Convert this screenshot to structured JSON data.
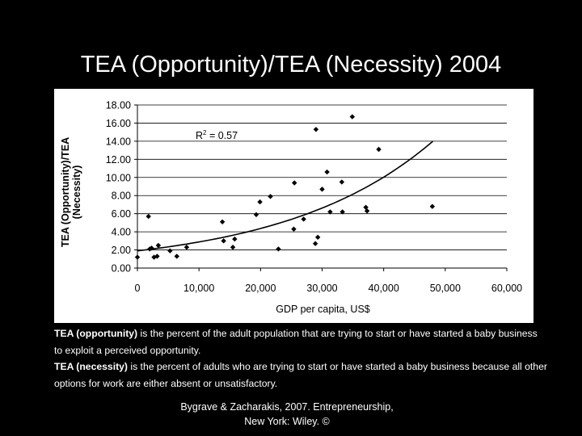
{
  "slide": {
    "title": "TEA (Opportunity)/TEA (Necessity) 2004"
  },
  "notes": [
    {
      "term": "TEA (opportunity)",
      "text": " is the percent of the adult population that are trying to start or have started a baby business to exploit a perceived opportunity."
    },
    {
      "term": "TEA (necessity)",
      "text": " is the percent of adults who are trying to start or have started a baby business because all other options for work are either absent or unsatisfactory."
    }
  ],
  "citation": {
    "line1": "Bygrave & Zacharakis, 2007.  Entrepreneurship,",
    "line2": "New York: Wiley.  ©"
  },
  "colors": {
    "background": "#000000",
    "text": "#ffffff",
    "plot_background": "#ffffff",
    "markers": "#000000",
    "trendline": "#000000",
    "gridlines": "#000000"
  },
  "chart_data": {
    "type": "scatter",
    "title": "",
    "xlabel": "GDP per capita, US$",
    "ylabel_lines": [
      "TEA (Opportunity)/TEA",
      "(Necessity)"
    ],
    "xlim": [
      0,
      60000
    ],
    "ylim": [
      0,
      18
    ],
    "x_ticks": [
      0,
      10000,
      20000,
      30000,
      40000,
      50000,
      60000
    ],
    "x_tick_labels": [
      "0",
      "10,000",
      "20,000",
      "30,000",
      "40,000",
      "50,000",
      "60,000"
    ],
    "y_ticks": [
      0,
      2,
      4,
      6,
      8,
      10,
      12,
      14,
      16,
      18
    ],
    "y_tick_labels": [
      "0.00",
      "2.00",
      "4.00",
      "6.00",
      "8.00",
      "10.00",
      "12.00",
      "14.00",
      "16.00",
      "18.00"
    ],
    "grid": "horizontal",
    "marker": "diamond",
    "annotation": {
      "text": "R",
      "superscript": "2",
      "suffix": " = 0.57"
    },
    "trendline": {
      "type": "exponential",
      "r_squared": 0.57,
      "x_range": [
        0,
        48000
      ],
      "y_start": 1.9,
      "y_end": 14
    },
    "points": [
      {
        "x": 0,
        "y": 1.2
      },
      {
        "x": 1800,
        "y": 5.7
      },
      {
        "x": 2000,
        "y": 2.1
      },
      {
        "x": 2300,
        "y": 2.2
      },
      {
        "x": 2700,
        "y": 1.2
      },
      {
        "x": 3200,
        "y": 1.3
      },
      {
        "x": 3400,
        "y": 2.5
      },
      {
        "x": 5300,
        "y": 1.9
      },
      {
        "x": 6400,
        "y": 1.3
      },
      {
        "x": 8000,
        "y": 2.3
      },
      {
        "x": 13800,
        "y": 5.1
      },
      {
        "x": 14000,
        "y": 3.0
      },
      {
        "x": 15500,
        "y": 2.3
      },
      {
        "x": 15800,
        "y": 3.2
      },
      {
        "x": 19300,
        "y": 5.9
      },
      {
        "x": 19900,
        "y": 7.3
      },
      {
        "x": 21600,
        "y": 7.9
      },
      {
        "x": 22900,
        "y": 2.1
      },
      {
        "x": 25400,
        "y": 4.3
      },
      {
        "x": 25500,
        "y": 9.4
      },
      {
        "x": 27000,
        "y": 5.4
      },
      {
        "x": 28900,
        "y": 2.7
      },
      {
        "x": 29000,
        "y": 15.3
      },
      {
        "x": 29300,
        "y": 3.4
      },
      {
        "x": 30000,
        "y": 8.7
      },
      {
        "x": 30800,
        "y": 10.6
      },
      {
        "x": 31300,
        "y": 6.2
      },
      {
        "x": 33200,
        "y": 9.5
      },
      {
        "x": 33300,
        "y": 6.2
      },
      {
        "x": 34900,
        "y": 16.7
      },
      {
        "x": 37100,
        "y": 6.7
      },
      {
        "x": 37300,
        "y": 6.3
      },
      {
        "x": 39200,
        "y": 13.1
      },
      {
        "x": 47900,
        "y": 6.8
      }
    ]
  }
}
